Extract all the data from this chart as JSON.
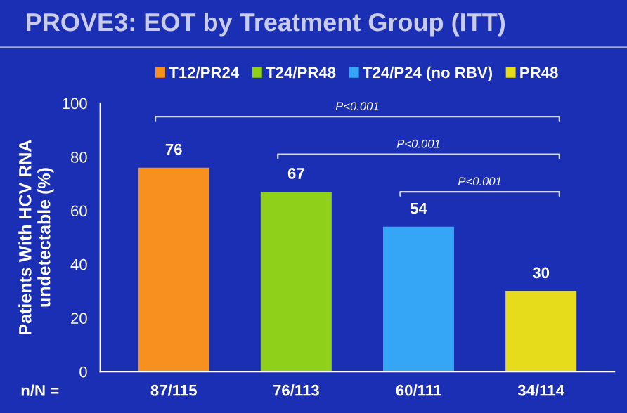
{
  "chart_data": {
    "type": "bar",
    "title": "PROVE3: EOT by Treatment Group (ITT)",
    "ylabel": "Patients With HCV RNA\nundetectable (%)",
    "categories": [
      "87/115",
      "76/113",
      "60/111",
      "34/114"
    ],
    "series": [
      {
        "name": "T12/PR24",
        "color": "#f7901e",
        "values": [
          76,
          null,
          null,
          null
        ]
      },
      {
        "name": "T24/PR48",
        "color": "#8fd01a",
        "values": [
          null,
          67,
          null,
          null
        ]
      },
      {
        "name": "T24/P24 (no RBV)",
        "color": "#35a6f5",
        "values": [
          null,
          null,
          54,
          null
        ]
      },
      {
        "name": "PR48",
        "color": "#e6dc1c",
        "values": [
          null,
          null,
          null,
          30
        ]
      }
    ],
    "ylim": [
      0,
      100
    ],
    "yticks": [
      0,
      20,
      40,
      60,
      80,
      100
    ],
    "data_labels": true,
    "legend": "top",
    "grid": false,
    "annotations": [
      "P<0.001",
      "P<0.001",
      "P<0.001",
      "n/N ="
    ]
  }
}
